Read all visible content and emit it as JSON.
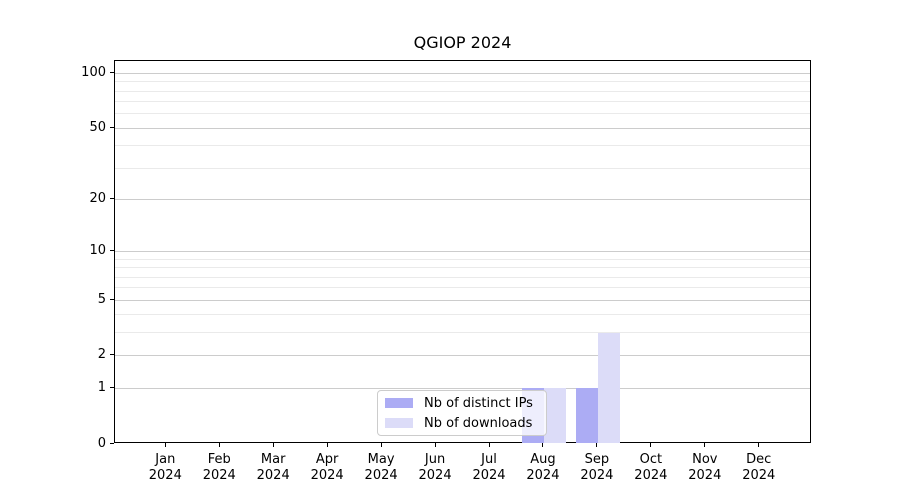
{
  "chart_data": {
    "type": "bar",
    "title": "QGIOP 2024",
    "categories": [
      "Jan 2024",
      "Feb 2024",
      "Mar 2024",
      "Apr 2024",
      "May 2024",
      "Jun 2024",
      "Jul 2024",
      "Aug 2024",
      "Sep 2024",
      "Oct 2024",
      "Nov 2024",
      "Dec 2024"
    ],
    "series": [
      {
        "name": "Nb of distinct IPs",
        "color": "#acacf4",
        "values": [
          0,
          0,
          0,
          0,
          0,
          0,
          0,
          1,
          1,
          0,
          0,
          0
        ]
      },
      {
        "name": "Nb of downloads",
        "color": "#dcdcf8",
        "values": [
          0,
          0,
          0,
          0,
          0,
          0,
          0,
          1,
          3,
          0,
          0,
          0
        ]
      }
    ],
    "xlabel": "",
    "ylabel": "",
    "y_axis": {
      "scale": "log1p",
      "ylim": [
        0,
        117
      ],
      "major_ticks": [
        0,
        1,
        2,
        5,
        10,
        20,
        50,
        100
      ],
      "minor_ticks": [
        3,
        4,
        6,
        7,
        8,
        9,
        30,
        40,
        60,
        70,
        80,
        90
      ]
    },
    "grid": true,
    "legend_position": "lower-center-inside"
  },
  "colors": {
    "major_grid": "#cccccc",
    "minor_grid": "#eaeaea",
    "spine": "#000000",
    "legend_border": "#cccccc",
    "legend_background": "rgba(255,255,255,0.8)"
  }
}
